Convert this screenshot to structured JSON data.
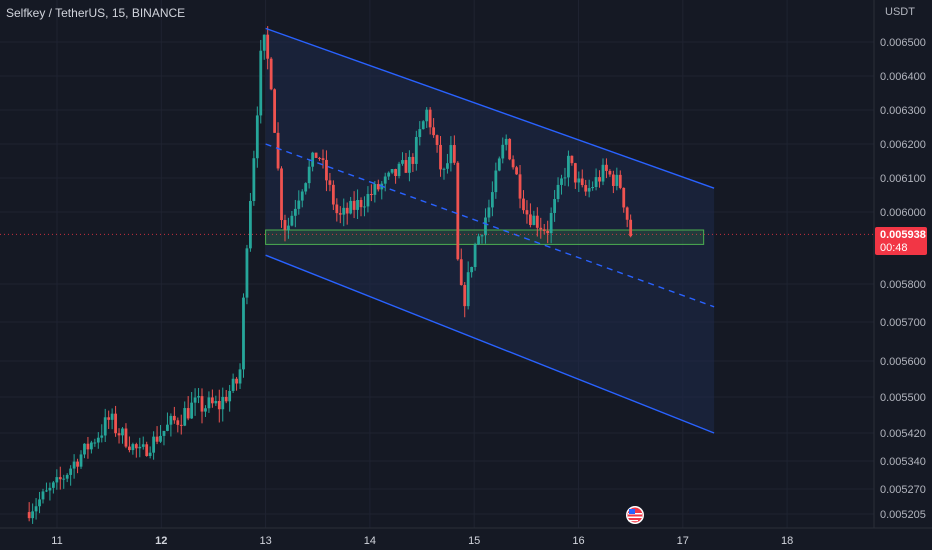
{
  "header": {
    "title": "Selfkey / TetherUS, 15, BINANCE"
  },
  "price_scale": {
    "currency": "USDT",
    "current_price": "0.005938",
    "countdown": "00:48"
  },
  "colors": {
    "background": "#151924",
    "up": "#26a69a",
    "down": "#ef5350",
    "channel_line": "#2962ff",
    "channel_fill": "#1e2a4a",
    "zone_border": "#4caf50",
    "price_label": "#f23645"
  },
  "icons": {
    "flag": "us-flag-icon"
  },
  "chart_data": {
    "type": "candlestick",
    "title": "Selfkey / TetherUS, 15, BINANCE",
    "pair": "SELFKEY/USDT",
    "timeframe": "15",
    "exchange": "BINANCE",
    "x_ticks": [
      "11",
      "12",
      "13",
      "14",
      "15",
      "16",
      "17",
      "18"
    ],
    "y_ticks": [
      "0.006500",
      "0.006400",
      "0.006300",
      "0.006200",
      "0.006100",
      "0.006000",
      "0.005800",
      "0.005700",
      "0.005600",
      "0.005500",
      "0.005420",
      "0.005340",
      "0.005270",
      "0.005205"
    ],
    "current_price": 0.005938,
    "key_points": [
      {
        "day": 10.7,
        "price": 0.00521
      },
      {
        "day": 11.0,
        "price": 0.00528
      },
      {
        "day": 11.5,
        "price": 0.00545
      },
      {
        "day": 11.8,
        "price": 0.00536
      },
      {
        "day": 12.0,
        "price": 0.00542
      },
      {
        "day": 12.3,
        "price": 0.00548
      },
      {
        "day": 12.55,
        "price": 0.00548
      },
      {
        "day": 12.75,
        "price": 0.00555
      },
      {
        "day": 12.82,
        "price": 0.00592
      },
      {
        "day": 12.9,
        "price": 0.00622
      },
      {
        "day": 12.97,
        "price": 0.00652
      },
      {
        "day": 13.05,
        "price": 0.0064
      },
      {
        "day": 13.15,
        "price": 0.006
      },
      {
        "day": 13.2,
        "price": 0.00595
      },
      {
        "day": 13.35,
        "price": 0.00608
      },
      {
        "day": 13.5,
        "price": 0.00618
      },
      {
        "day": 13.7,
        "price": 0.00598
      },
      {
        "day": 14.0,
        "price": 0.00605
      },
      {
        "day": 14.4,
        "price": 0.00615
      },
      {
        "day": 14.55,
        "price": 0.0063
      },
      {
        "day": 14.7,
        "price": 0.0061
      },
      {
        "day": 14.8,
        "price": 0.0062
      },
      {
        "day": 14.85,
        "price": 0.0058
      },
      {
        "day": 14.9,
        "price": 0.00575
      },
      {
        "day": 15.0,
        "price": 0.0059
      },
      {
        "day": 15.15,
        "price": 0.00602
      },
      {
        "day": 15.3,
        "price": 0.00622
      },
      {
        "day": 15.5,
        "price": 0.006
      },
      {
        "day": 15.7,
        "price": 0.00595
      },
      {
        "day": 15.9,
        "price": 0.00615
      },
      {
        "day": 16.05,
        "price": 0.00605
      },
      {
        "day": 16.25,
        "price": 0.00612
      },
      {
        "day": 16.4,
        "price": 0.00608
      },
      {
        "day": 16.5,
        "price": 0.005938
      }
    ],
    "channel": {
      "upper": [
        {
          "day": 13.0,
          "price": 0.00654
        },
        {
          "day": 17.3,
          "price": 0.00607
        }
      ],
      "middle": [
        {
          "day": 13.0,
          "price": 0.0062
        },
        {
          "day": 17.3,
          "price": 0.00574
        }
      ],
      "lower": [
        {
          "day": 13.0,
          "price": 0.00588
        },
        {
          "day": 17.3,
          "price": 0.00542
        }
      ]
    },
    "support_zone": {
      "from_day": 13.0,
      "to_day": 17.2,
      "high": 0.00595,
      "low": 0.00591
    }
  }
}
